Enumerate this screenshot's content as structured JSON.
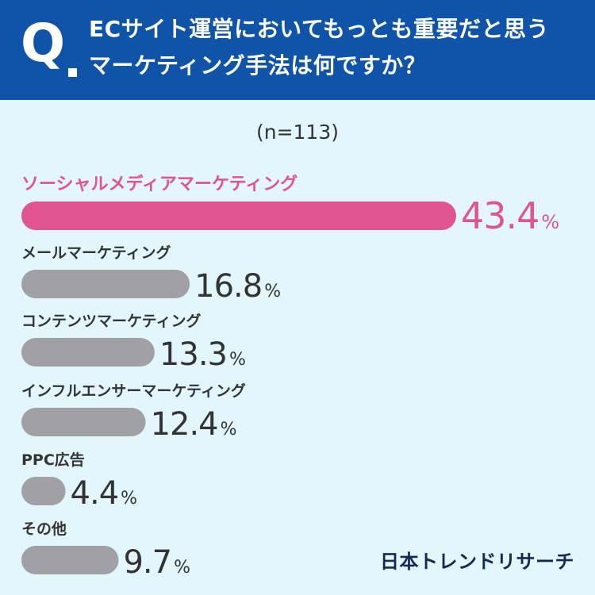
{
  "question": {
    "mark": "Q",
    "text_line1": "ECサイト運営においてもっとも重要だと思う",
    "text_line2": "マーケティング手法は何ですか？"
  },
  "sample_size": "(n=113)",
  "logo": "日本トレンドリサーチ",
  "colors": {
    "header_bg": "#0f54a8",
    "page_bg": "#e2f6fc",
    "highlight": "#e05590",
    "bar_gray": "#a1a0a6",
    "value_text": "#333333"
  },
  "chart_data": {
    "type": "bar",
    "orientation": "horizontal",
    "categories": [
      "ソーシャルメディアマーケティング",
      "メールマーケティング",
      "コンテンツマーケティング",
      "インフルエンサーマーケティング",
      "PPC広告",
      "その他"
    ],
    "values": [
      43.4,
      16.8,
      13.3,
      12.4,
      4.4,
      9.7
    ],
    "value_labels": [
      "43.4",
      "16.8",
      "13.3",
      "12.4",
      "4.4",
      "9.7"
    ],
    "unit": "%",
    "highlight_index": 0,
    "xlim": [
      0,
      43.4
    ]
  }
}
